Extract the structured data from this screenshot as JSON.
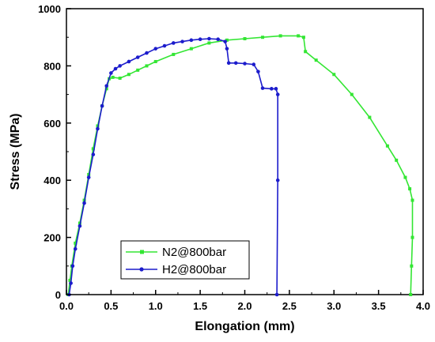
{
  "chart_data": {
    "type": "line",
    "xlabel": "Elongation (mm)",
    "ylabel": "Stress (MPa)",
    "xlim": [
      0,
      4.0
    ],
    "ylim": [
      0,
      1000
    ],
    "xticks": [
      0.0,
      0.5,
      1.0,
      1.5,
      2.0,
      2.5,
      3.0,
      3.5,
      4.0
    ],
    "xtick_labels": [
      "0.0",
      "0.5",
      "1.0",
      "1.5",
      "2.0",
      "2.5",
      "3.0",
      "3.5",
      "4.0"
    ],
    "yticks": [
      0,
      200,
      400,
      600,
      800,
      1000
    ],
    "ytick_labels": [
      "0",
      "200",
      "400",
      "600",
      "800",
      "1000"
    ],
    "grid": false,
    "legend_position": "bottom-left",
    "series": [
      {
        "name": "N2@800bar",
        "color": "#33e633",
        "marker": "square",
        "points": [
          [
            0.02,
            0
          ],
          [
            0.04,
            50
          ],
          [
            0.06,
            100
          ],
          [
            0.1,
            180
          ],
          [
            0.15,
            250
          ],
          [
            0.2,
            330
          ],
          [
            0.25,
            420
          ],
          [
            0.3,
            510
          ],
          [
            0.35,
            590
          ],
          [
            0.4,
            660
          ],
          [
            0.45,
            720
          ],
          [
            0.48,
            755
          ],
          [
            0.52,
            760
          ],
          [
            0.6,
            757
          ],
          [
            0.7,
            770
          ],
          [
            0.8,
            785
          ],
          [
            0.9,
            800
          ],
          [
            1.0,
            815
          ],
          [
            1.2,
            840
          ],
          [
            1.4,
            860
          ],
          [
            1.6,
            880
          ],
          [
            1.8,
            890
          ],
          [
            2.0,
            895
          ],
          [
            2.2,
            900
          ],
          [
            2.4,
            905
          ],
          [
            2.6,
            905
          ],
          [
            2.66,
            900
          ],
          [
            2.68,
            850
          ],
          [
            2.8,
            820
          ],
          [
            3.0,
            770
          ],
          [
            3.2,
            700
          ],
          [
            3.4,
            620
          ],
          [
            3.6,
            520
          ],
          [
            3.7,
            470
          ],
          [
            3.8,
            410
          ],
          [
            3.85,
            370
          ],
          [
            3.88,
            330
          ],
          [
            3.88,
            200
          ],
          [
            3.87,
            100
          ],
          [
            3.86,
            0
          ]
        ]
      },
      {
        "name": "H2@800bar",
        "color": "#1c1ccc",
        "marker": "circle",
        "points": [
          [
            0.03,
            0
          ],
          [
            0.05,
            40
          ],
          [
            0.07,
            100
          ],
          [
            0.1,
            160
          ],
          [
            0.15,
            240
          ],
          [
            0.2,
            320
          ],
          [
            0.25,
            410
          ],
          [
            0.3,
            490
          ],
          [
            0.35,
            580
          ],
          [
            0.4,
            660
          ],
          [
            0.45,
            730
          ],
          [
            0.5,
            775
          ],
          [
            0.55,
            790
          ],
          [
            0.6,
            800
          ],
          [
            0.7,
            815
          ],
          [
            0.8,
            830
          ],
          [
            0.9,
            845
          ],
          [
            1.0,
            860
          ],
          [
            1.1,
            870
          ],
          [
            1.2,
            880
          ],
          [
            1.3,
            885
          ],
          [
            1.4,
            890
          ],
          [
            1.5,
            893
          ],
          [
            1.6,
            895
          ],
          [
            1.7,
            893
          ],
          [
            1.78,
            885
          ],
          [
            1.8,
            860
          ],
          [
            1.82,
            810
          ],
          [
            1.9,
            810
          ],
          [
            2.0,
            808
          ],
          [
            2.1,
            805
          ],
          [
            2.15,
            780
          ],
          [
            2.2,
            722
          ],
          [
            2.3,
            720
          ],
          [
            2.35,
            720
          ],
          [
            2.37,
            700
          ],
          [
            2.37,
            400
          ],
          [
            2.36,
            0
          ]
        ]
      }
    ]
  }
}
